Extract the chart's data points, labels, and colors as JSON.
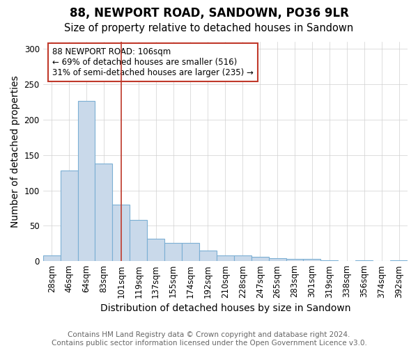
{
  "title1": "88, NEWPORT ROAD, SANDOWN, PO36 9LR",
  "title2": "Size of property relative to detached houses in Sandown",
  "xlabel": "Distribution of detached houses by size in Sandown",
  "ylabel": "Number of detached properties",
  "footnote": "Contains HM Land Registry data © Crown copyright and database right 2024.\nContains public sector information licensed under the Open Government Licence v3.0.",
  "bar_labels": [
    "28sqm",
    "46sqm",
    "64sqm",
    "83sqm",
    "101sqm",
    "119sqm",
    "137sqm",
    "155sqm",
    "174sqm",
    "192sqm",
    "210sqm",
    "228sqm",
    "247sqm",
    "265sqm",
    "283sqm",
    "301sqm",
    "319sqm",
    "338sqm",
    "356sqm",
    "374sqm",
    "392sqm"
  ],
  "bar_values": [
    8,
    128,
    226,
    138,
    80,
    58,
    32,
    26,
    26,
    15,
    8,
    8,
    6,
    4,
    3,
    3,
    1,
    0,
    1,
    0,
    1
  ],
  "bar_color": "#c9d9ea",
  "bar_edge_color": "#7bafd4",
  "vline_x": 4,
  "vline_color": "#c0392b",
  "annotation_text": "88 NEWPORT ROAD: 106sqm\n← 69% of detached houses are smaller (516)\n31% of semi-detached houses are larger (235) →",
  "annotation_box_color": "#ffffff",
  "annotation_box_edge": "#c0392b",
  "ylim": [
    0,
    310
  ],
  "yticks": [
    0,
    50,
    100,
    150,
    200,
    250,
    300
  ],
  "bg_color": "#ffffff",
  "plot_bg_color": "#ffffff",
  "title_fontsize": 12,
  "subtitle_fontsize": 10.5,
  "axis_label_fontsize": 10,
  "tick_fontsize": 8.5,
  "footnote_fontsize": 7.5
}
